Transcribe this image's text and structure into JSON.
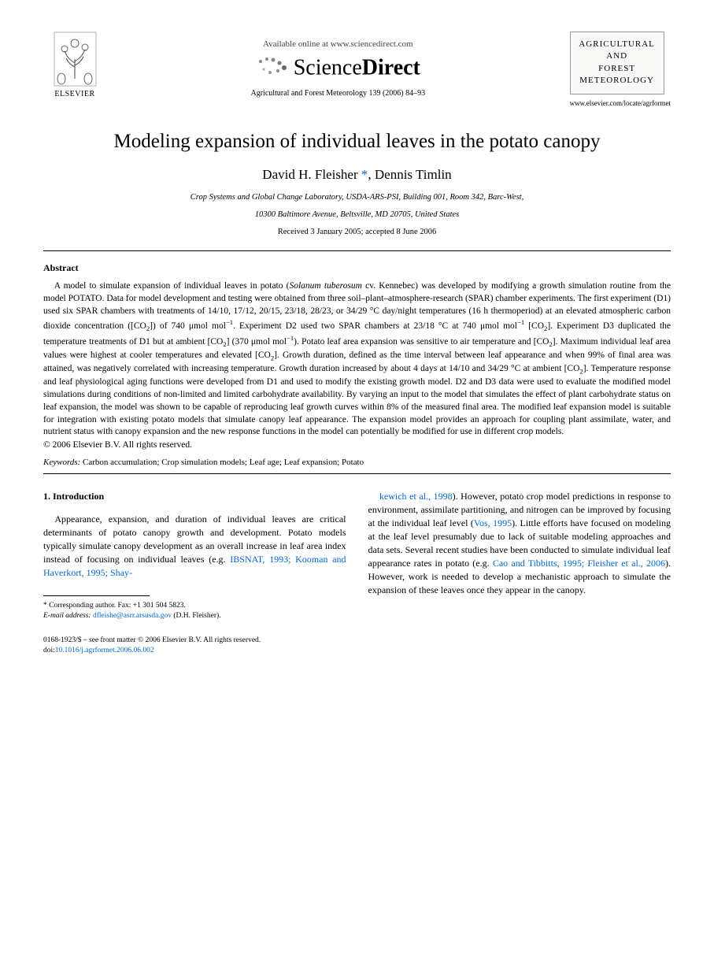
{
  "header": {
    "publisher_name": "ELSEVIER",
    "available_online": "Available online at www.sciencedirect.com",
    "sd_brand_light": "Science",
    "sd_brand_bold": "Direct",
    "journal_reference": "Agricultural and Forest Meteorology 139 (2006) 84–93",
    "journal_cover_line1": "AGRICULTURAL",
    "journal_cover_line2": "AND",
    "journal_cover_line3": "FOREST",
    "journal_cover_line4": "METEOROLOGY",
    "journal_url": "www.elsevier.com/locate/agrformet"
  },
  "title": "Modeling expansion of individual leaves in the potato canopy",
  "authors_html": "David H. Fleisher <a href=\"#\">*</a>, Dennis Timlin",
  "affiliation_line1": "Crop Systems and Global Change Laboratory, USDA-ARS-PSI, Building 001, Room 342, Barc-West,",
  "affiliation_line2": "10300 Baltimore Avenue, Beltsville, MD 20705, United States",
  "dates": "Received 3 January 2005; accepted 8 June 2006",
  "abstract": {
    "heading": "Abstract",
    "body_html": "A model to simulate expansion of individual leaves in potato (<i>Solanum tuberosum</i> cv. Kennebec) was developed by modifying a growth simulation routine from the model POTATO. Data for model development and testing were obtained from three soil–plant–atmosphere-research (SPAR) chamber experiments. The first experiment (D1) used six SPAR chambers with treatments of 14/10, 17/12, 20/15, 23/18, 28/23, or 34/29 °C day/night temperatures (16 h thermoperiod) at an elevated atmospheric carbon dioxide concentration ([CO<sub>2</sub>]) of 740 μmol mol<sup>−1</sup>. Experiment D2 used two SPAR chambers at 23/18 °C at 740 μmol mol<sup>−1</sup> [CO<sub>2</sub>]. Experiment D3 duplicated the temperature treatments of D1 but at ambient [CO<sub>2</sub>] (370 μmol mol<sup>−1</sup>). Potato leaf area expansion was sensitive to air temperature and [CO<sub>2</sub>]. Maximum individual leaf area values were highest at cooler temperatures and elevated [CO<sub>2</sub>]. Growth duration, defined as the time interval between leaf appearance and when 99% of final area was attained, was negatively correlated with increasing temperature. Growth duration increased by about 4 days at 14/10 and 34/29 °C at ambient [CO<sub>2</sub>]. Temperature response and leaf physiological aging functions were developed from D1 and used to modify the existing growth model. D2 and D3 data were used to evaluate the modified model simulations during conditions of non-limited and limited carbohydrate availability. By varying an input to the model that simulates the effect of plant carbohydrate status on leaf expansion, the model was shown to be capable of reproducing leaf growth curves within 8% of the measured final area. The modified leaf expansion model is suitable for integration with existing potato models that simulate canopy leaf appearance. The expansion model provides an approach for coupling plant assimilate, water, and nutrient status with canopy expansion and the new response functions in the model can potentially be modified for use in different crop models.",
    "copyright": "© 2006 Elsevier B.V. All rights reserved."
  },
  "keywords": {
    "label": "Keywords:",
    "text": " Carbon accumulation; Crop simulation models; Leaf age; Leaf expansion; Potato"
  },
  "section1": {
    "heading": "1. Introduction",
    "col1_html": "Appearance, expansion, and duration of individual leaves are critical determinants of potato canopy growth and development. Potato models typically simulate canopy development as an overall increase in leaf area index instead of focusing on individual leaves (e.g. <a class=\"cite\" href=\"#\">IBSNAT, 1993; Kooman and Haverkort, 1995; Shay-</a>",
    "col2_html": "<a class=\"cite\" href=\"#\">kewich et al., 1998</a>). However, potato crop model predictions in response to environment, assimilate partitioning, and nitrogen can be improved by focusing at the individual leaf level (<a class=\"cite\" href=\"#\">Vos, 1995</a>). Little efforts have focused on modeling at the leaf level presumably due to lack of suitable modeling approaches and data sets. Several recent studies have been conducted to simulate individual leaf appearance rates in potato (e.g. <a class=\"cite\" href=\"#\">Cao and Tibbitts, 1995; Fleisher et al., 2006</a>). However, work is needed to develop a mechanistic approach to simulate the expansion of these leaves once they appear in the canopy."
  },
  "footnote": {
    "corr": "* Corresponding author. Fax: +1 301 504 5823.",
    "email_label": "E-mail address:",
    "email": "dfleishe@asrr.arsusda.gov",
    "email_author": " (D.H. Fleisher)."
  },
  "footer": {
    "issn_line": "0168-1923/$ – see front matter © 2006 Elsevier B.V. All rights reserved.",
    "doi_label": "doi:",
    "doi": "10.1016/j.agrformet.2006.06.002"
  },
  "colors": {
    "link": "#0066cc",
    "text": "#000000",
    "rule": "#000000",
    "cover_bg": "#f9f9f7",
    "cover_border": "#999999"
  }
}
